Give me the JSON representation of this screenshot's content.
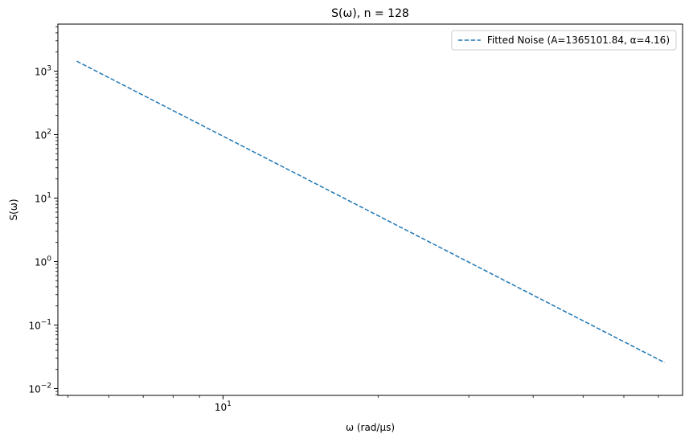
{
  "chart_data": {
    "type": "line",
    "title": "S(ω), n = 128",
    "xlabel": "ω (rad/μs)",
    "ylabel": "S(ω)",
    "xscale": "log",
    "yscale": "log",
    "xlim": [
      4.78,
      78.0
    ],
    "ylim": [
      0.0078,
      5500
    ],
    "x_ticks": [
      {
        "value": 10,
        "mantissa": "10",
        "exp": "1"
      }
    ],
    "x_minor_ticks": [
      5,
      6,
      7,
      8,
      9,
      20,
      30,
      40,
      50,
      60,
      70
    ],
    "y_ticks": [
      {
        "value": 0.01,
        "mantissa": "10",
        "exp": "−2"
      },
      {
        "value": 0.1,
        "mantissa": "10",
        "exp": "−1"
      },
      {
        "value": 1,
        "mantissa": "10",
        "exp": "0"
      },
      {
        "value": 10,
        "mantissa": "10",
        "exp": "1"
      },
      {
        "value": 100,
        "mantissa": "10",
        "exp": "2"
      },
      {
        "value": 1000,
        "mantissa": "10",
        "exp": "3"
      }
    ],
    "grid": false,
    "legend_position": "top-right",
    "series": [
      {
        "name": "Fitted Noise (A=1365101.84, α=4.16)",
        "color": "#1f77b4",
        "style": "dashed",
        "model": "A * x^(-alpha)",
        "A": 1365101.84,
        "alpha": 4.16,
        "x_start": 5.2,
        "x_end": 72.0
      }
    ]
  }
}
